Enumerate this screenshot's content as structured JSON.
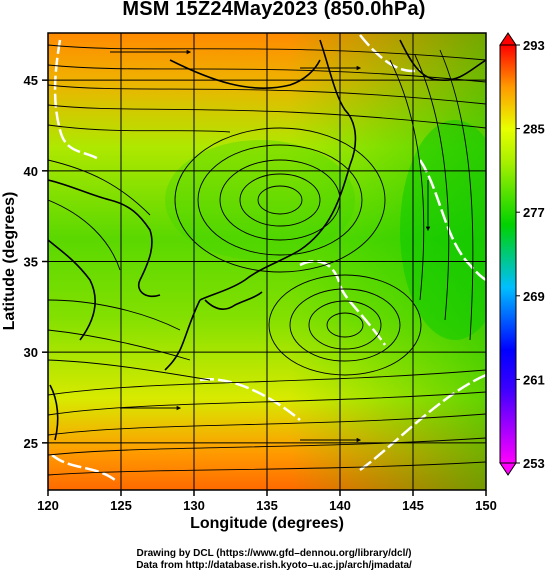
{
  "title": "MSM 15Z24May2023 (850.0hPa)",
  "chart_data": {
    "type": "map",
    "xlabel": "Longitude (degrees)",
    "ylabel": "Latitude  (degrees)",
    "xlim": [
      120,
      150
    ],
    "ylim": [
      22.4,
      47.6
    ],
    "x_ticks": [
      120,
      125,
      130,
      135,
      140,
      145,
      150
    ],
    "y_ticks": [
      25,
      30,
      35,
      40,
      45
    ],
    "colorbar": {
      "min": 253,
      "max": 293,
      "tick_values": [
        253,
        261,
        269,
        277,
        285,
        293
      ],
      "tick_labels": [
        "253",
        "261",
        "269",
        "277",
        "285",
        "293"
      ],
      "colors": [
        "#ff00ff",
        "#0000ff",
        "#00bfff",
        "#00d200",
        "#ccff00",
        "#ff0000"
      ]
    },
    "streamline_centers": [
      {
        "lon": 135,
        "lat": 39.5,
        "rotation": "counterclockwise"
      },
      {
        "lon": 139.5,
        "lat": 32.0,
        "rotation": "counterclockwise"
      }
    ]
  },
  "footer": {
    "line1": "Drawing by DCL (https://www.gfd–dennou.org/library/dcl/)",
    "line2": "Data from http://database.rish.kyoto–u.ac.jp/arch/jmadata/"
  }
}
